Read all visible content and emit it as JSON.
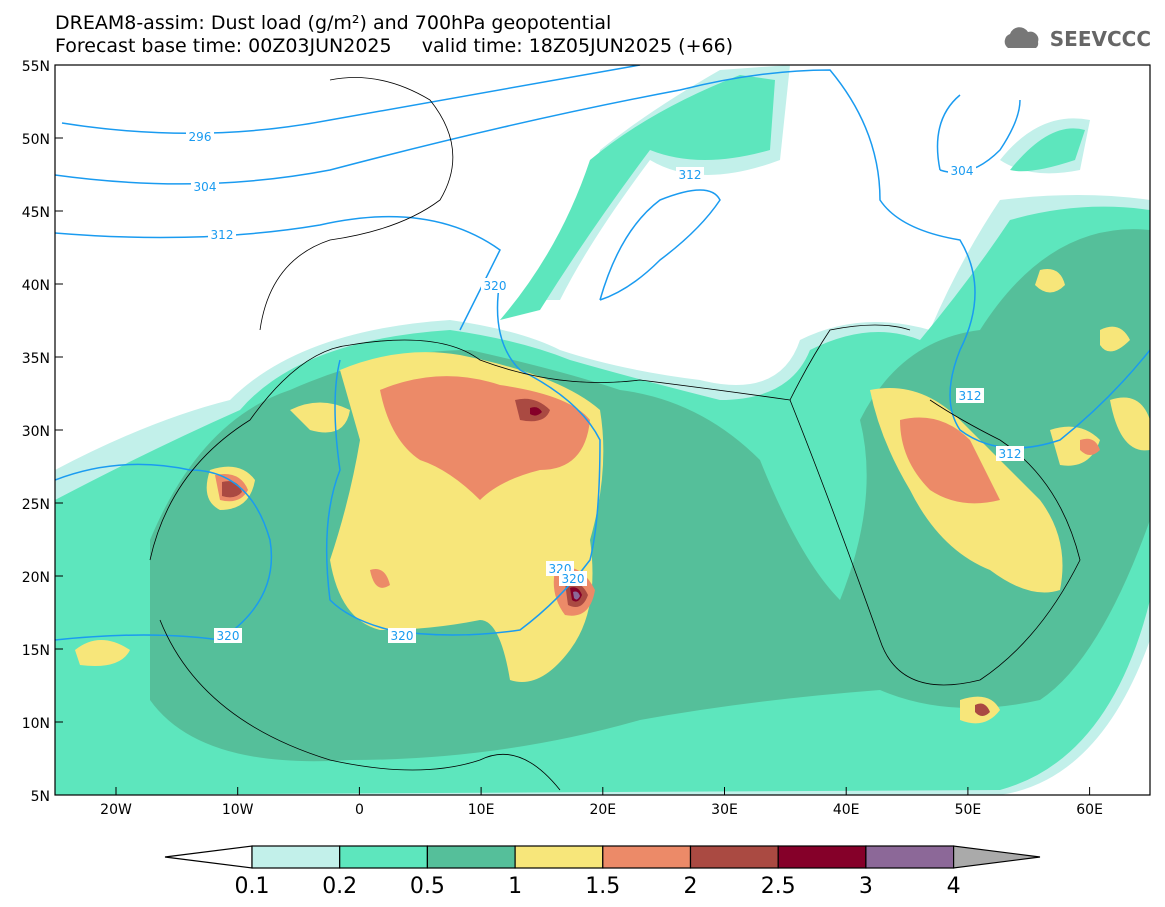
{
  "header": {
    "title_line1": "DREAM8-assim: Dust load (g/m²) and 700hPa geopotential",
    "title_line2": "Forecast base time: 00Z03JUN2025     valid time: 18Z05JUN2025 (+66)",
    "logo_text": "SEEVCCC",
    "logo_icon": "cloud-icon"
  },
  "map": {
    "lat_labels": [
      "55N",
      "50N",
      "45N",
      "40N",
      "35N",
      "30N",
      "25N",
      "20N",
      "15N",
      "10N",
      "5N"
    ],
    "lon_labels": [
      "20W",
      "10W",
      "0",
      "10E",
      "20E",
      "30E",
      "40E",
      "50E",
      "60E"
    ],
    "contour_labels": [
      "296",
      "304",
      "312",
      "320",
      "320",
      "320",
      "320",
      "320",
      "304",
      "312",
      "312",
      "312"
    ],
    "contour_color": "#1a9bf0"
  },
  "legend": {
    "ticks": [
      "0.1",
      "0.2",
      "0.5",
      "1",
      "1.5",
      "2",
      "2.5",
      "3",
      "4"
    ],
    "colors": [
      "#c2f0ea",
      "#5de6bd",
      "#55bf9a",
      "#f7e67a",
      "#ec8a68",
      "#aa4a42",
      "#850029",
      "#8c6898",
      "#aaaaaa"
    ]
  }
}
